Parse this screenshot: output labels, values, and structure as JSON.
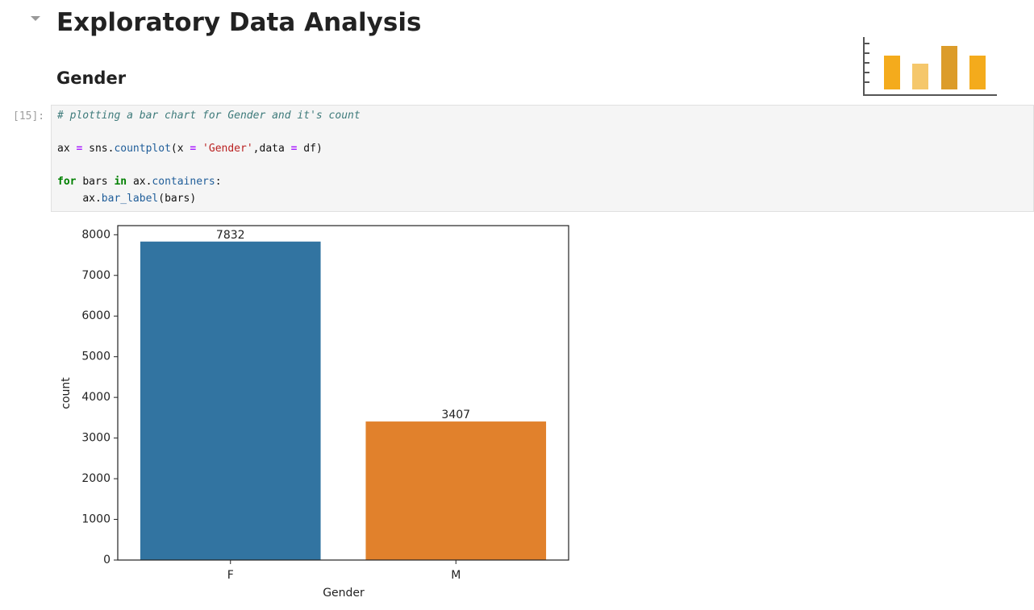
{
  "notebook": {
    "heading": "Exploratory Data Analysis",
    "subheading": "Gender",
    "prompt": "[15]:",
    "code": [
      [
        "# plotting a bar chart for Gender and it's count"
      ],
      [
        "ax",
        "=",
        "sns.",
        "countplot",
        "(x",
        "=",
        "'Gender'",
        ",data",
        "=",
        "df)"
      ],
      [
        "for",
        "bars",
        "in",
        "ax.",
        "containers",
        ":"
      ],
      [
        "ax.",
        "bar_label",
        "(bars)"
      ]
    ]
  },
  "chart_data": {
    "type": "bar",
    "categories": [
      "F",
      "M"
    ],
    "values": [
      7832,
      3407
    ],
    "colors": [
      "#3274a1",
      "#e1812c"
    ],
    "xlabel": "Gender",
    "ylabel": "count",
    "ylim": [
      0,
      8224
    ],
    "yticks": [
      0,
      1000,
      2000,
      3000,
      4000,
      5000,
      6000,
      7000,
      8000
    ],
    "grid": false
  }
}
